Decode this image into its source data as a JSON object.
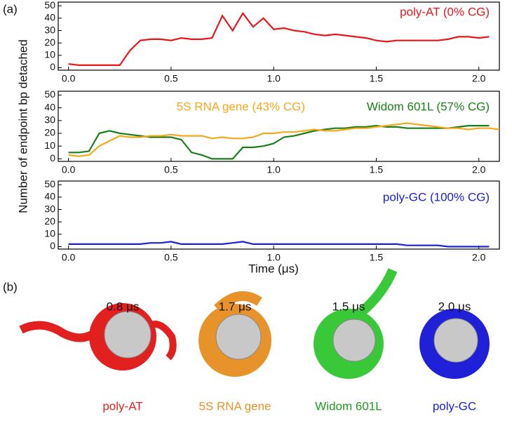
{
  "panel_a_label": "(a)",
  "chart_data": [
    {
      "type": "line",
      "xlim": [
        -0.05,
        2.1
      ],
      "ylim": [
        -2,
        53
      ],
      "xticks": [
        {
          "value": 0,
          "label": "0.0"
        },
        0.5,
        {
          "value": 1,
          "label": "1.0"
        },
        1.5,
        {
          "value": 2,
          "label": "2.0"
        }
      ],
      "yticks": [
        0,
        10,
        20,
        30,
        40,
        50
      ],
      "x": [
        0,
        0.05,
        0.1,
        0.15,
        0.2,
        0.25,
        0.3,
        0.35,
        0.4,
        0.45,
        0.5,
        0.55,
        0.6,
        0.65,
        0.7,
        0.75,
        0.8,
        0.85,
        0.9,
        0.95,
        1.0,
        1.05,
        1.1,
        1.15,
        1.2,
        1.25,
        1.3,
        1.35,
        1.4,
        1.45,
        1.5,
        1.55,
        1.6,
        1.65,
        1.7,
        1.75,
        1.8,
        1.85,
        1.9,
        1.95,
        2.0,
        2.05
      ],
      "series": [
        {
          "name": "poly-AT (0% CG)",
          "color": "#e8161b",
          "values": [
            3,
            2,
            2,
            2,
            2,
            2,
            14,
            22,
            23,
            23,
            22,
            24,
            23,
            23,
            24,
            42,
            30,
            44,
            33,
            40,
            31,
            32,
            30,
            29,
            27,
            26,
            27,
            26,
            25,
            24,
            22,
            21,
            22,
            22,
            22,
            22,
            22,
            23,
            25,
            25,
            24,
            25
          ]
        }
      ]
    },
    {
      "type": "line",
      "xlim": [
        -0.05,
        2.1
      ],
      "ylim": [
        -2,
        53
      ],
      "xticks": [
        {
          "value": 0,
          "label": "0.0"
        },
        0.5,
        {
          "value": 1,
          "label": "1.0"
        },
        1.5,
        {
          "value": 2,
          "label": "2.0"
        }
      ],
      "yticks": [
        0,
        10,
        20,
        30,
        40,
        50
      ],
      "y_label": "Number of endpoint bp detached",
      "x": [
        0,
        0.05,
        0.1,
        0.15,
        0.2,
        0.25,
        0.3,
        0.35,
        0.4,
        0.45,
        0.5,
        0.55,
        0.6,
        0.65,
        0.7,
        0.75,
        0.8,
        0.85,
        0.9,
        0.95,
        1.0,
        1.05,
        1.1,
        1.15,
        1.2,
        1.25,
        1.3,
        1.35,
        1.4,
        1.45,
        1.5,
        1.55,
        1.6,
        1.65,
        1.7,
        1.75,
        1.8,
        1.85,
        1.9,
        1.95,
        2.0,
        2.05,
        2.1
      ],
      "series": [
        {
          "name": "Widom 601L (57% CG)",
          "color": "#1a7f1a",
          "values": [
            5,
            5,
            6,
            20,
            22,
            20,
            19,
            18,
            17,
            17,
            17,
            15,
            5,
            3,
            0,
            0,
            0,
            9,
            9,
            10,
            12,
            17,
            18,
            20,
            22,
            23,
            24,
            24,
            25,
            25,
            26,
            25,
            25,
            24,
            24,
            24,
            24,
            24,
            25,
            26,
            26,
            26,
            null
          ]
        },
        {
          "name": "5S RNA gene (43% CG)",
          "color": "#f5a81c",
          "values": [
            3,
            2,
            3,
            10,
            14,
            18,
            17,
            17,
            18,
            18,
            19,
            18,
            18,
            18,
            16,
            17,
            16,
            16,
            17,
            20,
            20,
            21,
            21,
            22,
            23,
            22,
            22,
            23,
            24,
            24,
            25,
            26,
            27,
            28,
            27,
            26,
            25,
            24,
            24,
            23,
            24,
            24,
            23
          ]
        }
      ]
    },
    {
      "type": "line",
      "xlim": [
        -0.05,
        2.1
      ],
      "ylim": [
        -2,
        53
      ],
      "xticks": [
        {
          "value": 0,
          "label": "0.0"
        },
        0.5,
        {
          "value": 1,
          "label": "1.0"
        },
        1.5,
        {
          "value": 2,
          "label": "2.0"
        }
      ],
      "yticks": [
        0,
        10,
        20,
        30,
        40,
        50
      ],
      "x_label": "Time (μs)",
      "x": [
        0,
        0.05,
        0.1,
        0.15,
        0.2,
        0.25,
        0.3,
        0.35,
        0.4,
        0.45,
        0.5,
        0.55,
        0.6,
        0.65,
        0.7,
        0.75,
        0.8,
        0.85,
        0.9,
        0.95,
        1.0,
        1.05,
        1.1,
        1.15,
        1.2,
        1.25,
        1.3,
        1.35,
        1.4,
        1.45,
        1.5,
        1.55,
        1.6,
        1.65,
        1.7,
        1.75,
        1.8,
        1.85,
        1.9,
        1.95,
        2.0,
        2.05
      ],
      "series": [
        {
          "name": "poly-GC (100% CG)",
          "color": "#1a22d6",
          "values": [
            2,
            2,
            2,
            2,
            2,
            2,
            2,
            2,
            3,
            3,
            4,
            2,
            2,
            2,
            2,
            2,
            3,
            4,
            2,
            2,
            2,
            2,
            2,
            2,
            2,
            2,
            2,
            2,
            2,
            2,
            2,
            2,
            2,
            1,
            1,
            1,
            1,
            0,
            0,
            0,
            0,
            0
          ]
        }
      ]
    }
  ],
  "panel_b": {
    "label": "(b)",
    "structures": [
      {
        "time": "0.8 μs",
        "name": "poly-AT"
      },
      {
        "time": "1.7 μs",
        "name": "5S RNA gene"
      },
      {
        "time": "1.5 μs",
        "name": "Widom 601L"
      },
      {
        "time": "2.0 μs",
        "name": "poly-GC"
      }
    ]
  }
}
